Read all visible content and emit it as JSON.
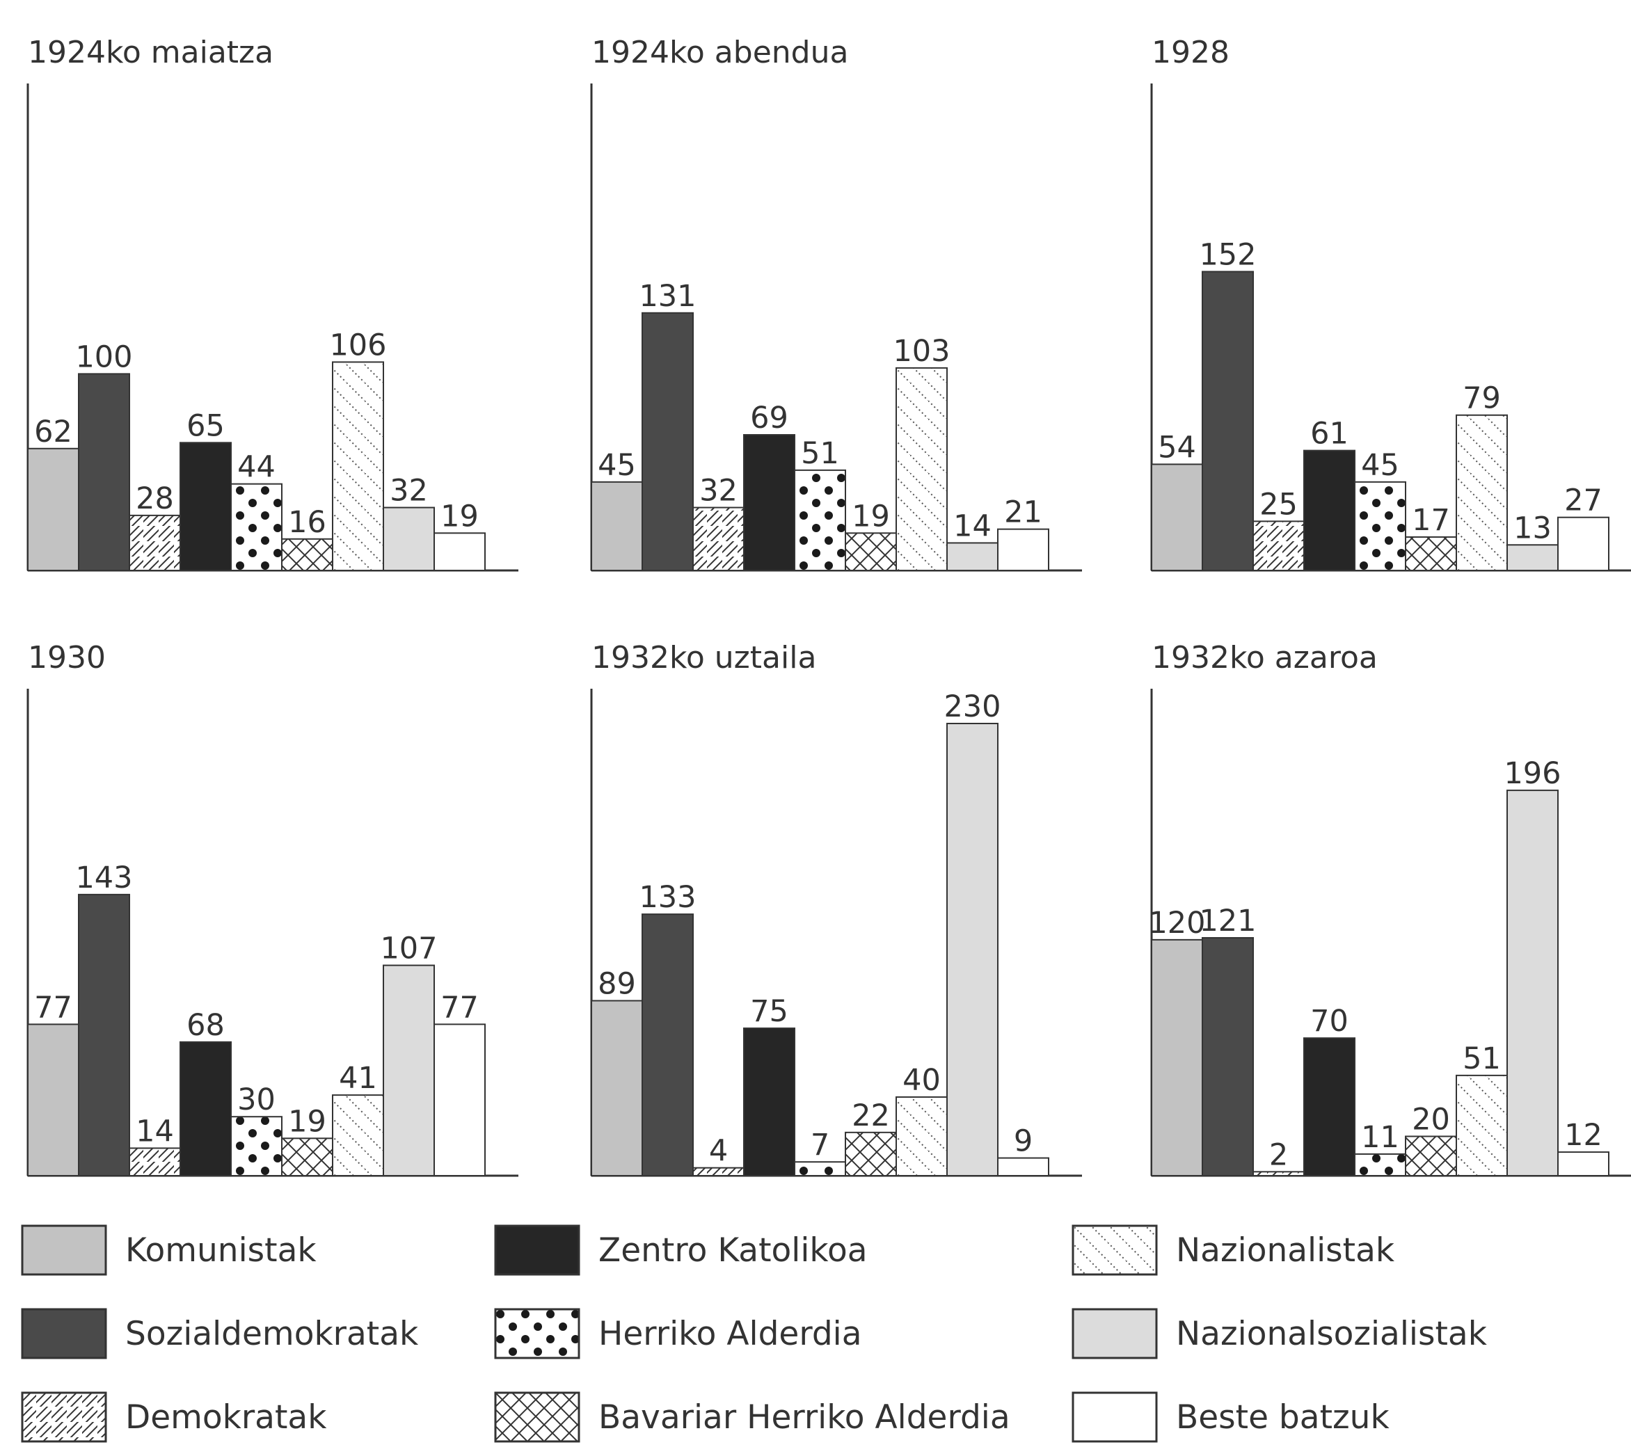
{
  "chart_data": [
    {
      "type": "bar",
      "title": "1924ko maiatza",
      "categories": [
        "Komunistak",
        "Sozialdemokratak",
        "Demokratak",
        "Zentro Katolikoa",
        "Herriko Alderdia",
        "Bavariar Herriko Alderdia",
        "Nazionalistak",
        "Nazionalsozialistak",
        "Beste batzuk"
      ],
      "values": [
        62,
        100,
        28,
        65,
        44,
        16,
        106,
        32,
        19
      ]
    },
    {
      "type": "bar",
      "title": "1924ko abendua",
      "categories": [
        "Komunistak",
        "Sozialdemokratak",
        "Demokratak",
        "Zentro Katolikoa",
        "Herriko Alderdia",
        "Bavariar Herriko Alderdia",
        "Nazionalistak",
        "Nazionalsozialistak",
        "Beste batzuk"
      ],
      "values": [
        45,
        131,
        32,
        69,
        51,
        19,
        103,
        14,
        21
      ]
    },
    {
      "type": "bar",
      "title": "1928",
      "categories": [
        "Komunistak",
        "Sozialdemokratak",
        "Demokratak",
        "Zentro Katolikoa",
        "Herriko Alderdia",
        "Bavariar Herriko Alderdia",
        "Nazionalistak",
        "Nazionalsozialistak",
        "Beste batzuk"
      ],
      "values": [
        54,
        152,
        25,
        61,
        45,
        17,
        79,
        13,
        27
      ]
    },
    {
      "type": "bar",
      "title": "1930",
      "categories": [
        "Komunistak",
        "Sozialdemokratak",
        "Demokratak",
        "Zentro Katolikoa",
        "Herriko Alderdia",
        "Bavariar Herriko Alderdia",
        "Nazionalistak",
        "Nazionalsozialistak",
        "Beste batzuk"
      ],
      "values": [
        77,
        143,
        14,
        68,
        30,
        19,
        41,
        107,
        77
      ]
    },
    {
      "type": "bar",
      "title": "1932ko uztaila",
      "categories": [
        "Komunistak",
        "Sozialdemokratak",
        "Demokratak",
        "Zentro Katolikoa",
        "Herriko Alderdia",
        "Bavariar Herriko Alderdia",
        "Nazionalistak",
        "Nazionalsozialistak",
        "Beste batzuk"
      ],
      "values": [
        89,
        133,
        4,
        75,
        7,
        22,
        40,
        230,
        9
      ]
    },
    {
      "type": "bar",
      "title": "1932ko azaroa",
      "categories": [
        "Komunistak",
        "Sozialdemokratak",
        "Demokratak",
        "Zentro Katolikoa",
        "Herriko Alderdia",
        "Bavariar Herriko Alderdia",
        "Nazionalistak",
        "Nazionalsozialistak",
        "Beste batzuk"
      ],
      "values": [
        120,
        121,
        2,
        70,
        11,
        20,
        51,
        196,
        12
      ]
    }
  ],
  "legend": [
    {
      "label": "Komunistak",
      "pattern": "light-gray"
    },
    {
      "label": "Sozialdemokratak",
      "pattern": "dark-gray"
    },
    {
      "label": "Demokratak",
      "pattern": "diagonal-lines"
    },
    {
      "label": "Zentro Katolikoa",
      "pattern": "black"
    },
    {
      "label": "Herriko Alderdia",
      "pattern": "dots"
    },
    {
      "label": "Bavariar Herriko Alderdia",
      "pattern": "crosshatch"
    },
    {
      "label": "Nazionalistak",
      "pattern": "dotted-diagonal"
    },
    {
      "label": "Nazionalsozialistak",
      "pattern": "pale-gray"
    },
    {
      "label": "Beste batzuk",
      "pattern": "white"
    }
  ],
  "colors": {
    "light_gray": "#c2c2c2",
    "dark_gray": "#4a4a4a",
    "black": "#262626",
    "pale_gray": "#dcdcdc",
    "axis": "#333333"
  }
}
